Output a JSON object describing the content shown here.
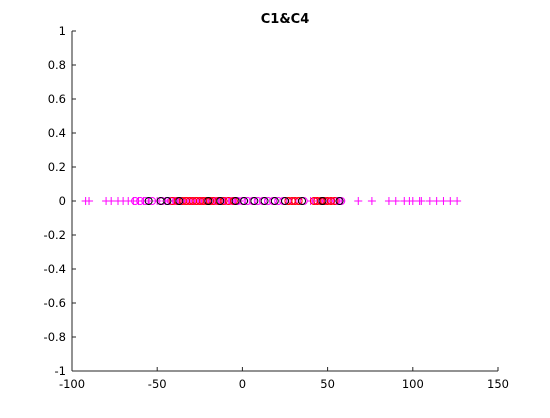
{
  "chart_data": {
    "type": "scatter",
    "title": "C1&C4",
    "xlabel": "",
    "ylabel": "",
    "xlim": [
      -100,
      150
    ],
    "ylim": [
      -1,
      1
    ],
    "xticks": [
      -100,
      -50,
      0,
      50,
      100,
      150
    ],
    "xtick_labels": [
      "-100",
      "-50",
      "0",
      "50",
      "100",
      "150"
    ],
    "yticks": [
      1,
      0.8,
      0.6,
      0.4,
      0.2,
      0,
      -0.2,
      -0.4,
      -0.6,
      -0.8,
      -1
    ],
    "ytick_labels": [
      "1",
      "0.8",
      "0.6",
      "0.4",
      "0.2",
      "0",
      "-0.2",
      "-0.4",
      "-0.6",
      "-0.8",
      "-1"
    ],
    "grid": false,
    "series": [
      {
        "marker": "plus",
        "color": "#ff00ff",
        "x": [
          -92,
          -90,
          -80,
          -77,
          -73,
          -70,
          -67,
          -64,
          -61,
          -58,
          -55,
          -50,
          -45,
          -43,
          -40,
          -38,
          -36,
          -34,
          -32,
          -30,
          -28,
          -26,
          -24,
          -22,
          -20,
          -18,
          -16,
          -14,
          -12,
          -10,
          -8,
          -6,
          -4,
          -2,
          40,
          42,
          44,
          46,
          48,
          50,
          52,
          54,
          56,
          58,
          68,
          76,
          86,
          90,
          95,
          98,
          100,
          104,
          105,
          110,
          114,
          118,
          122,
          126
        ],
        "y": [
          0,
          0,
          0,
          0,
          0,
          0,
          0,
          0,
          0,
          0,
          0,
          0,
          0,
          0,
          0,
          0,
          0,
          0,
          0,
          0,
          0,
          0,
          0,
          0,
          0,
          0,
          0,
          0,
          0,
          0,
          0,
          0,
          0,
          0,
          0,
          0,
          0,
          0,
          0,
          0,
          0,
          0,
          0,
          0,
          0,
          0,
          0,
          0,
          0,
          0,
          0,
          0,
          0,
          0,
          0,
          0,
          0,
          0
        ]
      },
      {
        "marker": "circle",
        "color": "#ff00ff",
        "x": [
          -63,
          -60,
          -57,
          -53,
          -47,
          -42,
          -39,
          -36,
          -33,
          -30,
          -27,
          -24,
          -21,
          -18,
          -15,
          -12,
          -9,
          -6,
          -3,
          0,
          3,
          6,
          9,
          12,
          15,
          18,
          21,
          24,
          27,
          30,
          33,
          36,
          43,
          46,
          49,
          52,
          55,
          58
        ],
        "y": [
          0,
          0,
          0,
          0,
          0,
          0,
          0,
          0,
          0,
          0,
          0,
          0,
          0,
          0,
          0,
          0,
          0,
          0,
          0,
          0,
          0,
          0,
          0,
          0,
          0,
          0,
          0,
          0,
          0,
          0,
          0,
          0,
          0,
          0,
          0,
          0,
          0,
          0
        ]
      },
      {
        "marker": "circle",
        "color": "#ff0000",
        "x": [
          -41,
          -38,
          -35,
          -33,
          -31,
          -29,
          -27,
          -25,
          -23,
          -21,
          -19,
          -17,
          -14,
          -11,
          -8,
          -5,
          27,
          29,
          31,
          33,
          42,
          44,
          46,
          48,
          50,
          52,
          54
        ],
        "y": [
          0,
          0,
          0,
          0,
          0,
          0,
          0,
          0,
          0,
          0,
          0,
          0,
          0,
          0,
          0,
          0,
          0,
          0,
          0,
          0,
          0,
          0,
          0,
          0,
          0,
          0,
          0
        ]
      },
      {
        "marker": "circle",
        "color": "#000000",
        "x": [
          -55,
          -48,
          -44,
          -37,
          -20,
          -13,
          -4,
          1,
          7,
          13,
          19,
          25,
          35,
          47,
          57
        ],
        "y": [
          0,
          0,
          0,
          0,
          0,
          0,
          0,
          0,
          0,
          0,
          0,
          0,
          0,
          0,
          0
        ]
      }
    ]
  }
}
